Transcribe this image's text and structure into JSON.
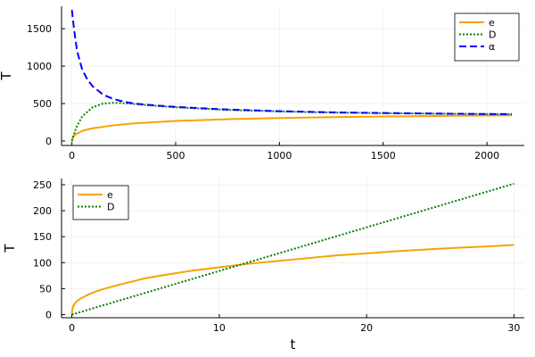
{
  "chart_data": [
    {
      "type": "line",
      "title": "",
      "xlabel": "",
      "ylabel": "T",
      "xlim": [
        -50,
        2180
      ],
      "ylim": [
        -60,
        1800
      ],
      "xticks": [
        0,
        500,
        1000,
        1500,
        2000
      ],
      "yticks": [
        0,
        500,
        1000,
        1500
      ],
      "grid": true,
      "legend_position": "top-right",
      "series": [
        {
          "name": "e",
          "color": "#f5a300",
          "dash": "solid",
          "x": [
            0,
            5,
            20,
            50,
            100,
            200,
            300,
            500,
            750,
            1000,
            1250,
            1500,
            1750,
            2000,
            2120
          ],
          "y": [
            0,
            57,
            92,
            135,
            170,
            209,
            235,
            268,
            291,
            307,
            319,
            327,
            334,
            340,
            342
          ]
        },
        {
          "name": "D",
          "color": "#008000",
          "dash": "dotted",
          "x": [
            0,
            20,
            50,
            100,
            150,
            200,
            250,
            300,
            400,
            500,
            750,
            1000,
            1250,
            1500,
            1750,
            2000,
            2120
          ],
          "y": [
            0,
            175,
            330,
            450,
            500,
            510,
            505,
            495,
            470,
            450,
            415,
            395,
            380,
            372,
            365,
            360,
            358
          ]
        },
        {
          "name": "α",
          "color": "#0000ff",
          "dash": "dashed",
          "x": [
            0,
            10,
            25,
            50,
            75,
            100,
            150,
            200,
            250,
            300,
            400,
            500,
            750,
            1000,
            1250,
            1500,
            1750,
            2000,
            2120
          ],
          "y": [
            1750,
            1500,
            1200,
            950,
            820,
            730,
            620,
            560,
            525,
            500,
            475,
            455,
            420,
            398,
            383,
            373,
            366,
            360,
            358
          ]
        }
      ]
    },
    {
      "type": "line",
      "title": "",
      "xlabel": "t",
      "ylabel": "T",
      "xlim": [
        -0.7,
        30.7
      ],
      "ylim": [
        -6,
        262
      ],
      "xticks": [
        0,
        10,
        20,
        30
      ],
      "yticks": [
        0,
        50,
        100,
        150,
        200,
        250
      ],
      "grid": true,
      "legend_position": "top-left",
      "series": [
        {
          "name": "e",
          "color": "#f5a300",
          "dash": "solid",
          "x": [
            0,
            0.02,
            0.1,
            0.3,
            0.6,
            1,
            1.5,
            2,
            3,
            4,
            5,
            6,
            8,
            10,
            12,
            15,
            18,
            20,
            22,
            25,
            28,
            30
          ],
          "y": [
            0,
            8,
            17,
            25,
            31,
            37,
            43,
            48,
            56,
            63,
            70,
            75,
            84,
            91,
            98,
            106,
            114,
            118,
            122,
            127,
            131,
            134
          ]
        },
        {
          "name": "D",
          "color": "#008000",
          "dash": "dotted",
          "x": [
            0,
            5,
            10,
            15,
            20,
            25,
            30
          ],
          "y": [
            0,
            42,
            84,
            126,
            168,
            210,
            252
          ]
        }
      ]
    }
  ]
}
